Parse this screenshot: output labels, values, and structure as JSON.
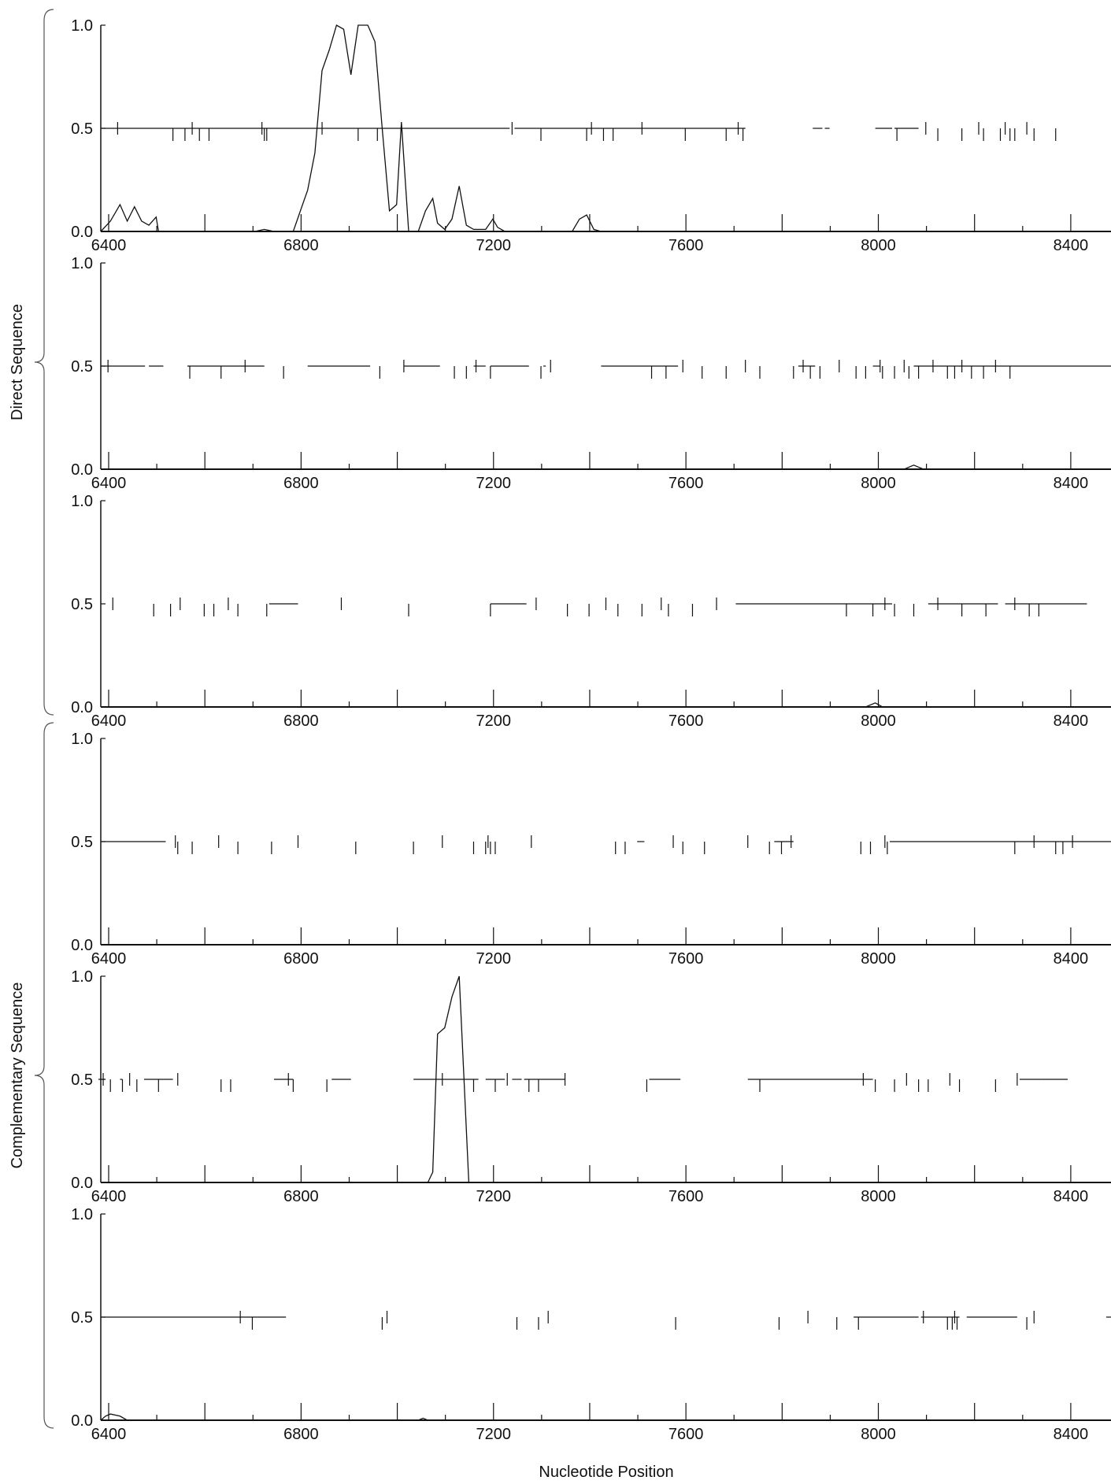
{
  "chart_data": {
    "type": "line",
    "xlabel": "Nucleotide Position",
    "xlim": [
      6400,
      8500
    ],
    "ylim": [
      0,
      1
    ],
    "x_ticks": [
      "6400",
      "6800",
      "7200",
      "7600",
      "8000",
      "8400"
    ],
    "y_ticks": [
      "0.0",
      "0.5",
      "1.0"
    ],
    "groups": [
      {
        "label": "Direct Sequence",
        "panels": [
          0,
          1,
          2
        ]
      },
      {
        "label": "Complementary Sequence",
        "panels": [
          3,
          4,
          5
        ]
      }
    ],
    "panels": [
      {
        "curve": [
          [
            6400,
            0
          ],
          [
            6420,
            0.05
          ],
          [
            6440,
            0.13
          ],
          [
            6455,
            0.05
          ],
          [
            6470,
            0.12
          ],
          [
            6485,
            0.05
          ],
          [
            6500,
            0.03
          ],
          [
            6515,
            0.07
          ],
          [
            6520,
            0
          ],
          [
            6720,
            0
          ],
          [
            6740,
            0.01
          ],
          [
            6760,
            0
          ],
          [
            6800,
            0
          ],
          [
            6815,
            0.1
          ],
          [
            6830,
            0.2
          ],
          [
            6845,
            0.38
          ],
          [
            6860,
            0.78
          ],
          [
            6875,
            0.88
          ],
          [
            6890,
            1.0
          ],
          [
            6905,
            0.98
          ],
          [
            6920,
            0.76
          ],
          [
            6935,
            1.0
          ],
          [
            6955,
            1.0
          ],
          [
            6970,
            0.92
          ],
          [
            6985,
            0.5
          ],
          [
            7000,
            0.1
          ],
          [
            7015,
            0.13
          ],
          [
            7025,
            0.53
          ],
          [
            7040,
            0
          ],
          [
            7060,
            0
          ],
          [
            7075,
            0.1
          ],
          [
            7090,
            0.16
          ],
          [
            7100,
            0.04
          ],
          [
            7115,
            0.01
          ],
          [
            7130,
            0.06
          ],
          [
            7145,
            0.22
          ],
          [
            7160,
            0.03
          ],
          [
            7175,
            0.01
          ],
          [
            7200,
            0.01
          ],
          [
            7215,
            0.06
          ],
          [
            7225,
            0.02
          ],
          [
            7240,
            0
          ],
          [
            7380,
            0
          ],
          [
            7395,
            0.06
          ],
          [
            7410,
            0.08
          ],
          [
            7425,
            0.01
          ],
          [
            7440,
            0
          ]
        ],
        "segments": [
          [
            6400,
            7250
          ],
          [
            7260,
            7740
          ],
          [
            7880,
            7900
          ],
          [
            7905,
            7915
          ],
          [
            8010,
            8045
          ],
          [
            8050,
            8100
          ]
        ],
        "marks": [
          6435,
          6550,
          6575,
          6590,
          6605,
          6625,
          6735,
          6740,
          6745,
          6860,
          6935,
          6975,
          7255,
          7315,
          7410,
          7420,
          7445,
          7465,
          7525,
          7615,
          7700,
          7725,
          7735,
          8055,
          8115,
          8140,
          8190,
          8225,
          8235,
          8270,
          8280,
          8290,
          8300,
          8325,
          8340,
          8385
        ]
      },
      {
        "curve": [
          [
            6400,
            0
          ],
          [
            8070,
            0
          ],
          [
            8090,
            0.02
          ],
          [
            8110,
            0
          ],
          [
            8500,
            0
          ]
        ],
        "segments": [
          [
            6400,
            6492
          ],
          [
            6500,
            6530
          ],
          [
            6580,
            6740
          ],
          [
            6830,
            6960
          ],
          [
            7030,
            7105
          ],
          [
            7175,
            7200
          ],
          [
            7210,
            7290
          ],
          [
            7320,
            7325
          ],
          [
            7440,
            7600
          ],
          [
            7850,
            7885
          ],
          [
            8005,
            8020
          ],
          [
            8090,
            8500
          ]
        ],
        "marks": [
          6415,
          6585,
          6650,
          6700,
          6780,
          6980,
          7030,
          7135,
          7160,
          7180,
          7210,
          7315,
          7335,
          7545,
          7575,
          7610,
          7650,
          7700,
          7740,
          7770,
          7840,
          7860,
          7875,
          7895,
          7935,
          7970,
          7990,
          8020,
          8025,
          8050,
          8070,
          8080,
          8100,
          8130,
          8160,
          8175,
          8190,
          8210,
          8235,
          8260,
          8290
        ]
      },
      {
        "curve": [
          [
            6400,
            0
          ],
          [
            7990,
            0
          ],
          [
            8010,
            0.02
          ],
          [
            8025,
            0
          ],
          [
            8500,
            0
          ]
        ],
        "segments": [
          [
            6750,
            6810
          ],
          [
            7210,
            7285
          ],
          [
            7720,
            8045
          ],
          [
            8120,
            8265
          ],
          [
            8280,
            8450
          ]
        ],
        "marks": [
          6425,
          6510,
          6545,
          6565,
          6615,
          6635,
          6665,
          6685,
          6745,
          6900,
          7040,
          7210,
          7305,
          7370,
          7415,
          7450,
          7475,
          7525,
          7565,
          7580,
          7630,
          7680,
          7950,
          8005,
          8030,
          8050,
          8090,
          8140,
          8190,
          8240,
          8300,
          8330,
          8350
        ]
      },
      {
        "curve": [
          [
            6400,
            0
          ],
          [
            8500,
            0
          ]
        ],
        "segments": [
          [
            6400,
            6535
          ],
          [
            7515,
            7530
          ],
          [
            7800,
            7840
          ],
          [
            8040,
            8500
          ]
        ],
        "marks": [
          6555,
          6560,
          6590,
          6645,
          6685,
          6755,
          6810,
          6930,
          7050,
          7110,
          7175,
          7200,
          7205,
          7210,
          7220,
          7295,
          7470,
          7490,
          7590,
          7610,
          7655,
          7745,
          7790,
          7815,
          7835,
          7980,
          8000,
          8030,
          8035,
          8300,
          8340,
          8385,
          8400,
          8420
        ]
      },
      {
        "curve": [
          [
            6400,
            0
          ],
          [
            7080,
            0
          ],
          [
            7090,
            0.05
          ],
          [
            7100,
            0.72
          ],
          [
            7115,
            0.75
          ],
          [
            7130,
            0.9
          ],
          [
            7145,
            1.0
          ],
          [
            7165,
            0
          ],
          [
            8500,
            0
          ]
        ],
        "segments": [
          [
            6395,
            6410
          ],
          [
            6440,
            6445
          ],
          [
            6490,
            6550
          ],
          [
            6760,
            6800
          ],
          [
            6880,
            6920
          ],
          [
            7050,
            7185
          ],
          [
            7200,
            7240
          ],
          [
            7255,
            7275
          ],
          [
            7280,
            7365
          ],
          [
            7540,
            7605
          ],
          [
            7745,
            8005
          ],
          [
            8310,
            8355
          ],
          [
            8355,
            8410
          ]
        ],
        "marks": [
          6405,
          6420,
          6445,
          6460,
          6475,
          6520,
          6560,
          6650,
          6670,
          6790,
          6800,
          6870,
          7110,
          7175,
          7220,
          7245,
          7290,
          7310,
          7365,
          7535,
          7770,
          7985,
          8010,
          8050,
          8075,
          8100,
          8120,
          8165,
          8185,
          8260,
          8305
        ]
      },
      {
        "curve": [
          [
            6400,
            0
          ],
          [
            6410,
            0.02
          ],
          [
            6420,
            0.03
          ],
          [
            6440,
            0.02
          ],
          [
            6455,
            0
          ],
          [
            7060,
            0
          ],
          [
            7070,
            0.01
          ],
          [
            7080,
            0
          ],
          [
            8500,
            0
          ]
        ],
        "segments": [
          [
            6400,
            6785
          ],
          [
            7965,
            8100
          ],
          [
            8105,
            8185
          ],
          [
            8200,
            8305
          ],
          [
            8490,
            8500
          ]
        ],
        "marks": [
          6690,
          6715,
          6985,
          6995,
          7265,
          7310,
          7330,
          7595,
          7810,
          7870,
          7930,
          7975,
          8110,
          8160,
          8170,
          8175,
          8180,
          8325,
          8340
        ]
      }
    ]
  }
}
